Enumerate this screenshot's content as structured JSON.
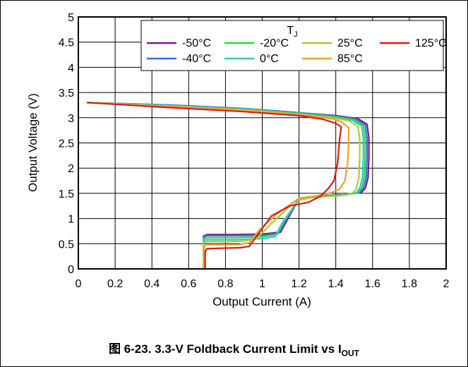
{
  "caption": {
    "prefix": "图 6-23. 3.3-V Foldback Current Limit vs I",
    "subscript": "OUT"
  },
  "chart_data": {
    "type": "line",
    "xlabel": "Output Current (A)",
    "ylabel": "Output Voltage (V)",
    "xlim": [
      0,
      2
    ],
    "ylim": [
      0,
      5
    ],
    "xticks": [
      0,
      0.2,
      0.4,
      0.6,
      0.8,
      1,
      1.2,
      1.4,
      1.6,
      1.8,
      2
    ],
    "xtick_labels": [
      "0",
      "0.2",
      "0.4",
      "0.6",
      "0.8",
      "1",
      "1.2",
      "1.4",
      "1.6",
      "1.8",
      "2"
    ],
    "yticks": [
      0,
      0.5,
      1,
      1.5,
      2,
      2.5,
      3,
      3.5,
      4,
      4.5,
      5
    ],
    "ytick_labels": [
      "0",
      "0.5",
      "1",
      "1.5",
      "2",
      "2.5",
      "3",
      "3.5",
      "4",
      "4.5",
      "5"
    ],
    "grid": true,
    "legend": {
      "placement": "top-right",
      "title": "T",
      "title_sub": "J"
    },
    "series": [
      {
        "name": "-50°C",
        "color": "#7a1a8c",
        "points": [
          [
            0.05,
            3.3
          ],
          [
            0.5,
            3.25
          ],
          [
            0.9,
            3.18
          ],
          [
            1.2,
            3.1
          ],
          [
            1.4,
            3.04
          ],
          [
            1.52,
            2.98
          ],
          [
            1.57,
            2.87
          ],
          [
            1.58,
            2.6
          ],
          [
            1.58,
            2.2
          ],
          [
            1.575,
            1.8
          ],
          [
            1.56,
            1.6
          ],
          [
            1.54,
            1.52
          ],
          [
            1.45,
            1.47
          ],
          [
            1.3,
            1.45
          ],
          [
            1.2,
            1.4
          ],
          [
            1.14,
            1.0
          ],
          [
            1.1,
            0.73
          ],
          [
            1.0,
            0.69
          ],
          [
            0.85,
            0.68
          ],
          [
            0.7,
            0.68
          ],
          [
            0.68,
            0.65
          ],
          [
            0.68,
            0.0
          ]
        ]
      },
      {
        "name": "-40°C",
        "color": "#3a6fd8",
        "points": [
          [
            0.05,
            3.3
          ],
          [
            0.5,
            3.25
          ],
          [
            0.9,
            3.18
          ],
          [
            1.2,
            3.1
          ],
          [
            1.4,
            3.03
          ],
          [
            1.51,
            2.97
          ],
          [
            1.56,
            2.86
          ],
          [
            1.57,
            2.6
          ],
          [
            1.57,
            2.2
          ],
          [
            1.565,
            1.8
          ],
          [
            1.55,
            1.6
          ],
          [
            1.53,
            1.52
          ],
          [
            1.44,
            1.47
          ],
          [
            1.3,
            1.45
          ],
          [
            1.2,
            1.4
          ],
          [
            1.13,
            0.98
          ],
          [
            1.09,
            0.71
          ],
          [
            1.0,
            0.67
          ],
          [
            0.85,
            0.66
          ],
          [
            0.7,
            0.66
          ],
          [
            0.68,
            0.63
          ],
          [
            0.68,
            0.0
          ]
        ]
      },
      {
        "name": "-20°C",
        "color": "#22dd44",
        "points": [
          [
            0.05,
            3.3
          ],
          [
            0.5,
            3.24
          ],
          [
            0.9,
            3.17
          ],
          [
            1.2,
            3.09
          ],
          [
            1.4,
            3.02
          ],
          [
            1.5,
            2.96
          ],
          [
            1.55,
            2.85
          ],
          [
            1.56,
            2.6
          ],
          [
            1.56,
            2.2
          ],
          [
            1.555,
            1.8
          ],
          [
            1.54,
            1.6
          ],
          [
            1.52,
            1.51
          ],
          [
            1.43,
            1.46
          ],
          [
            1.3,
            1.44
          ],
          [
            1.2,
            1.39
          ],
          [
            1.12,
            0.95
          ],
          [
            1.08,
            0.68
          ],
          [
            1.0,
            0.64
          ],
          [
            0.85,
            0.62
          ],
          [
            0.7,
            0.62
          ],
          [
            0.68,
            0.6
          ],
          [
            0.68,
            0.0
          ]
        ]
      },
      {
        "name": "0°C",
        "color": "#36c4c4",
        "points": [
          [
            0.05,
            3.3
          ],
          [
            0.5,
            3.24
          ],
          [
            0.9,
            3.17
          ],
          [
            1.2,
            3.08
          ],
          [
            1.4,
            3.0
          ],
          [
            1.49,
            2.95
          ],
          [
            1.54,
            2.84
          ],
          [
            1.55,
            2.6
          ],
          [
            1.55,
            2.2
          ],
          [
            1.545,
            1.8
          ],
          [
            1.53,
            1.6
          ],
          [
            1.51,
            1.5
          ],
          [
            1.42,
            1.46
          ],
          [
            1.3,
            1.43
          ],
          [
            1.2,
            1.38
          ],
          [
            1.11,
            0.92
          ],
          [
            1.07,
            0.64
          ],
          [
            1.0,
            0.6
          ],
          [
            0.85,
            0.58
          ],
          [
            0.7,
            0.58
          ],
          [
            0.68,
            0.56
          ],
          [
            0.68,
            0.0
          ]
        ]
      },
      {
        "name": "25°C",
        "color": "#a8cc2e",
        "points": [
          [
            0.05,
            3.3
          ],
          [
            0.5,
            3.23
          ],
          [
            0.9,
            3.16
          ],
          [
            1.2,
            3.07
          ],
          [
            1.4,
            2.99
          ],
          [
            1.47,
            2.94
          ],
          [
            1.52,
            2.83
          ],
          [
            1.53,
            2.6
          ],
          [
            1.53,
            2.2
          ],
          [
            1.525,
            1.8
          ],
          [
            1.51,
            1.58
          ],
          [
            1.49,
            1.5
          ],
          [
            1.41,
            1.45
          ],
          [
            1.28,
            1.42
          ],
          [
            1.18,
            1.35
          ],
          [
            1.05,
            0.9
          ],
          [
            0.97,
            0.6
          ],
          [
            0.9,
            0.55
          ],
          [
            0.8,
            0.54
          ],
          [
            0.7,
            0.54
          ],
          [
            0.68,
            0.52
          ],
          [
            0.68,
            0.0
          ]
        ]
      },
      {
        "name": "85°C",
        "color": "#f0a030",
        "points": [
          [
            0.05,
            3.3
          ],
          [
            0.5,
            3.22
          ],
          [
            0.9,
            3.15
          ],
          [
            1.2,
            3.06
          ],
          [
            1.38,
            2.98
          ],
          [
            1.43,
            2.92
          ],
          [
            1.47,
            2.8
          ],
          [
            1.47,
            2.5
          ],
          [
            1.465,
            2.1
          ],
          [
            1.45,
            1.75
          ],
          [
            1.42,
            1.58
          ],
          [
            1.38,
            1.52
          ],
          [
            1.3,
            1.45
          ],
          [
            1.2,
            1.4
          ],
          [
            1.1,
            1.15
          ],
          [
            0.99,
            0.8
          ],
          [
            0.93,
            0.52
          ],
          [
            0.87,
            0.48
          ],
          [
            0.78,
            0.48
          ],
          [
            0.7,
            0.48
          ],
          [
            0.685,
            0.45
          ],
          [
            0.685,
            0.0
          ]
        ]
      },
      {
        "name": "125°C",
        "color": "#dd1a1a",
        "points": [
          [
            0.05,
            3.3
          ],
          [
            0.5,
            3.2
          ],
          [
            0.9,
            3.12
          ],
          [
            1.2,
            3.04
          ],
          [
            1.33,
            2.97
          ],
          [
            1.4,
            2.89
          ],
          [
            1.43,
            2.82
          ],
          [
            1.42,
            2.55
          ],
          [
            1.41,
            2.1
          ],
          [
            1.39,
            1.75
          ],
          [
            1.36,
            1.6
          ],
          [
            1.32,
            1.45
          ],
          [
            1.25,
            1.32
          ],
          [
            1.15,
            1.25
          ],
          [
            1.05,
            1.05
          ],
          [
            0.98,
            0.7
          ],
          [
            0.93,
            0.45
          ],
          [
            0.88,
            0.42
          ],
          [
            0.78,
            0.41
          ],
          [
            0.7,
            0.4
          ],
          [
            0.69,
            0.35
          ],
          [
            0.69,
            0.0
          ]
        ]
      }
    ]
  }
}
